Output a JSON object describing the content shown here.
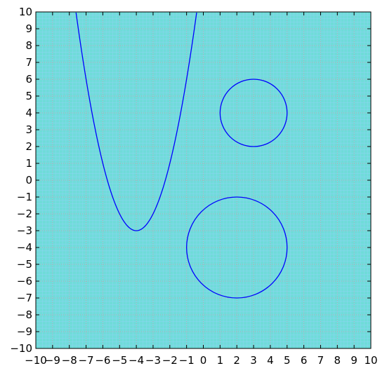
{
  "chart_data": {
    "type": "line",
    "title": "",
    "xlabel": "",
    "ylabel": "",
    "xlim": [
      -10,
      10
    ],
    "ylim": [
      -10,
      10
    ],
    "grid": true,
    "x_ticks": [
      "−10",
      "−9",
      "−8",
      "−7",
      "−6",
      "−5",
      "−4",
      "−3",
      "−2",
      "−1",
      "0",
      "1",
      "2",
      "3",
      "4",
      "5",
      "6",
      "7",
      "8",
      "9",
      "10"
    ],
    "y_ticks": [
      "−10",
      "−9",
      "−8",
      "−7",
      "−6",
      "−5",
      "−4",
      "−3",
      "−2",
      "−1",
      "0",
      "1",
      "2",
      "3",
      "4",
      "5",
      "6",
      "7",
      "8",
      "9",
      "10"
    ],
    "series": [
      {
        "kind": "parabola",
        "vertex": [
          -4,
          -3
        ],
        "a": 1,
        "x_range": [
          -7.6,
          -0.4
        ]
      },
      {
        "kind": "circle",
        "center": [
          3,
          4
        ],
        "radius": 2
      },
      {
        "kind": "circle",
        "center": [
          2,
          -4
        ],
        "radius": 3
      }
    ],
    "colors": {
      "plot_background": "#6fdcd9",
      "fine_grid": "#8fd3f2",
      "major_grid": "#b0b0b0",
      "curve": "#0000ff",
      "frame": "#000000"
    }
  }
}
